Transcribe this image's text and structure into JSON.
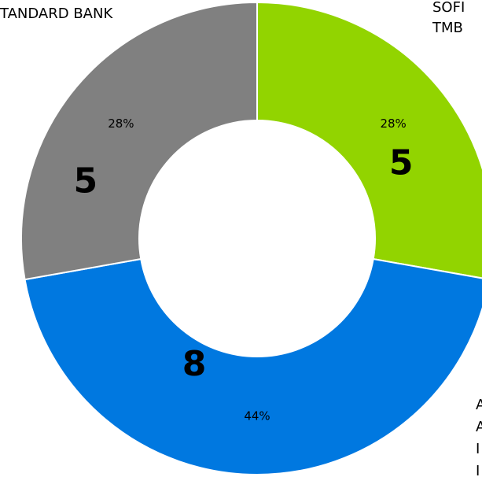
{
  "chart_data": {
    "type": "donut",
    "categories": [
      [
        "SOFI",
        "TMB"
      ],
      [
        "A",
        "A",
        "I",
        "I"
      ],
      [
        "TANDARD BANK"
      ]
    ],
    "values": [
      5,
      8,
      5
    ],
    "percents": [
      28,
      44,
      28
    ],
    "percent_labels": [
      "28%",
      "44%",
      "28%"
    ],
    "colors": [
      "#92d400",
      "#0078e0",
      "#808080"
    ]
  }
}
